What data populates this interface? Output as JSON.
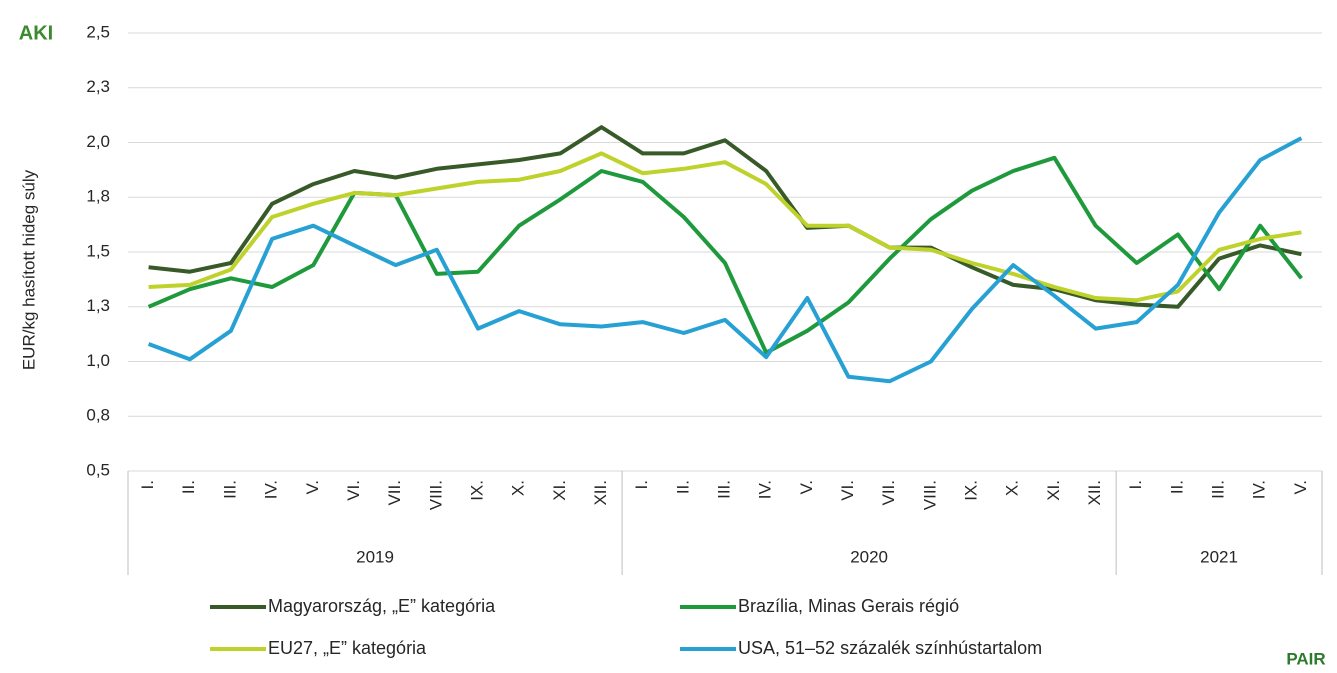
{
  "chart_data": {
    "type": "line",
    "y_label": "EUR/kg hasított hideg súly",
    "logo_left": "AKI",
    "logo_right": "PAIR",
    "groups": [
      {
        "label": "2019",
        "categories": [
          "I.",
          "II.",
          "III.",
          "IV.",
          "V.",
          "VI.",
          "VII.",
          "VIII.",
          "IX.",
          "X.",
          "XI.",
          "XII."
        ]
      },
      {
        "label": "2020",
        "categories": [
          "I.",
          "II.",
          "III.",
          "IV.",
          "V.",
          "VI.",
          "VII.",
          "VIII.",
          "IX.",
          "X.",
          "XI.",
          "XII."
        ]
      },
      {
        "label": "2021",
        "categories": [
          "I.",
          "II.",
          "III.",
          "IV.",
          "V."
        ]
      }
    ],
    "ylim": [
      0.5,
      2.5
    ],
    "yticks": [
      {
        "value": 0.5,
        "label": "0,5"
      },
      {
        "value": 0.75,
        "label": "0,8"
      },
      {
        "value": 1.0,
        "label": "1,0"
      },
      {
        "value": 1.25,
        "label": "1,3"
      },
      {
        "value": 1.5,
        "label": "1,5"
      },
      {
        "value": 1.75,
        "label": "1,8"
      },
      {
        "value": 2.0,
        "label": "2,0"
      },
      {
        "value": 2.25,
        "label": "2,3"
      },
      {
        "value": 2.5,
        "label": "2,5"
      }
    ],
    "grid": true,
    "legend": "bottom",
    "series": [
      {
        "name": "Magyarország, „E” kategória",
        "color": "#375a28",
        "values": [
          1.43,
          1.41,
          1.45,
          1.72,
          1.81,
          1.87,
          1.84,
          1.88,
          1.9,
          1.92,
          1.95,
          2.07,
          1.95,
          1.95,
          2.01,
          1.87,
          1.61,
          1.62,
          1.52,
          1.52,
          1.43,
          1.35,
          1.33,
          1.28,
          1.26,
          1.25,
          1.47,
          1.53,
          1.49
        ]
      },
      {
        "name": "Brazília, Minas Gerais régió",
        "color": "#1e9a3c",
        "values": [
          1.25,
          1.33,
          1.38,
          1.34,
          1.44,
          1.77,
          1.76,
          1.4,
          1.41,
          1.62,
          1.74,
          1.87,
          1.82,
          1.66,
          1.45,
          1.04,
          1.14,
          1.27,
          1.47,
          1.65,
          1.78,
          1.87,
          1.93,
          1.62,
          1.45,
          1.58,
          1.33,
          1.62,
          1.38
        ]
      },
      {
        "name": "EU27, „E” kategória",
        "color": "#bfd22b",
        "values": [
          1.34,
          1.35,
          1.42,
          1.66,
          1.72,
          1.77,
          1.76,
          1.79,
          1.82,
          1.83,
          1.87,
          1.95,
          1.86,
          1.88,
          1.91,
          1.81,
          1.62,
          1.62,
          1.52,
          1.51,
          1.45,
          1.4,
          1.34,
          1.29,
          1.28,
          1.32,
          1.51,
          1.56,
          1.59
        ]
      },
      {
        "name": "USA, 51–52 százalék színhústartalom",
        "color": "#27a1d3",
        "values": [
          1.08,
          1.01,
          1.14,
          1.56,
          1.62,
          1.53,
          1.44,
          1.51,
          1.15,
          1.23,
          1.17,
          1.16,
          1.18,
          1.13,
          1.19,
          1.02,
          1.29,
          0.93,
          0.91,
          1.0,
          1.24,
          1.44,
          1.3,
          1.15,
          1.18,
          1.35,
          1.68,
          1.92,
          2.02
        ]
      }
    ]
  }
}
